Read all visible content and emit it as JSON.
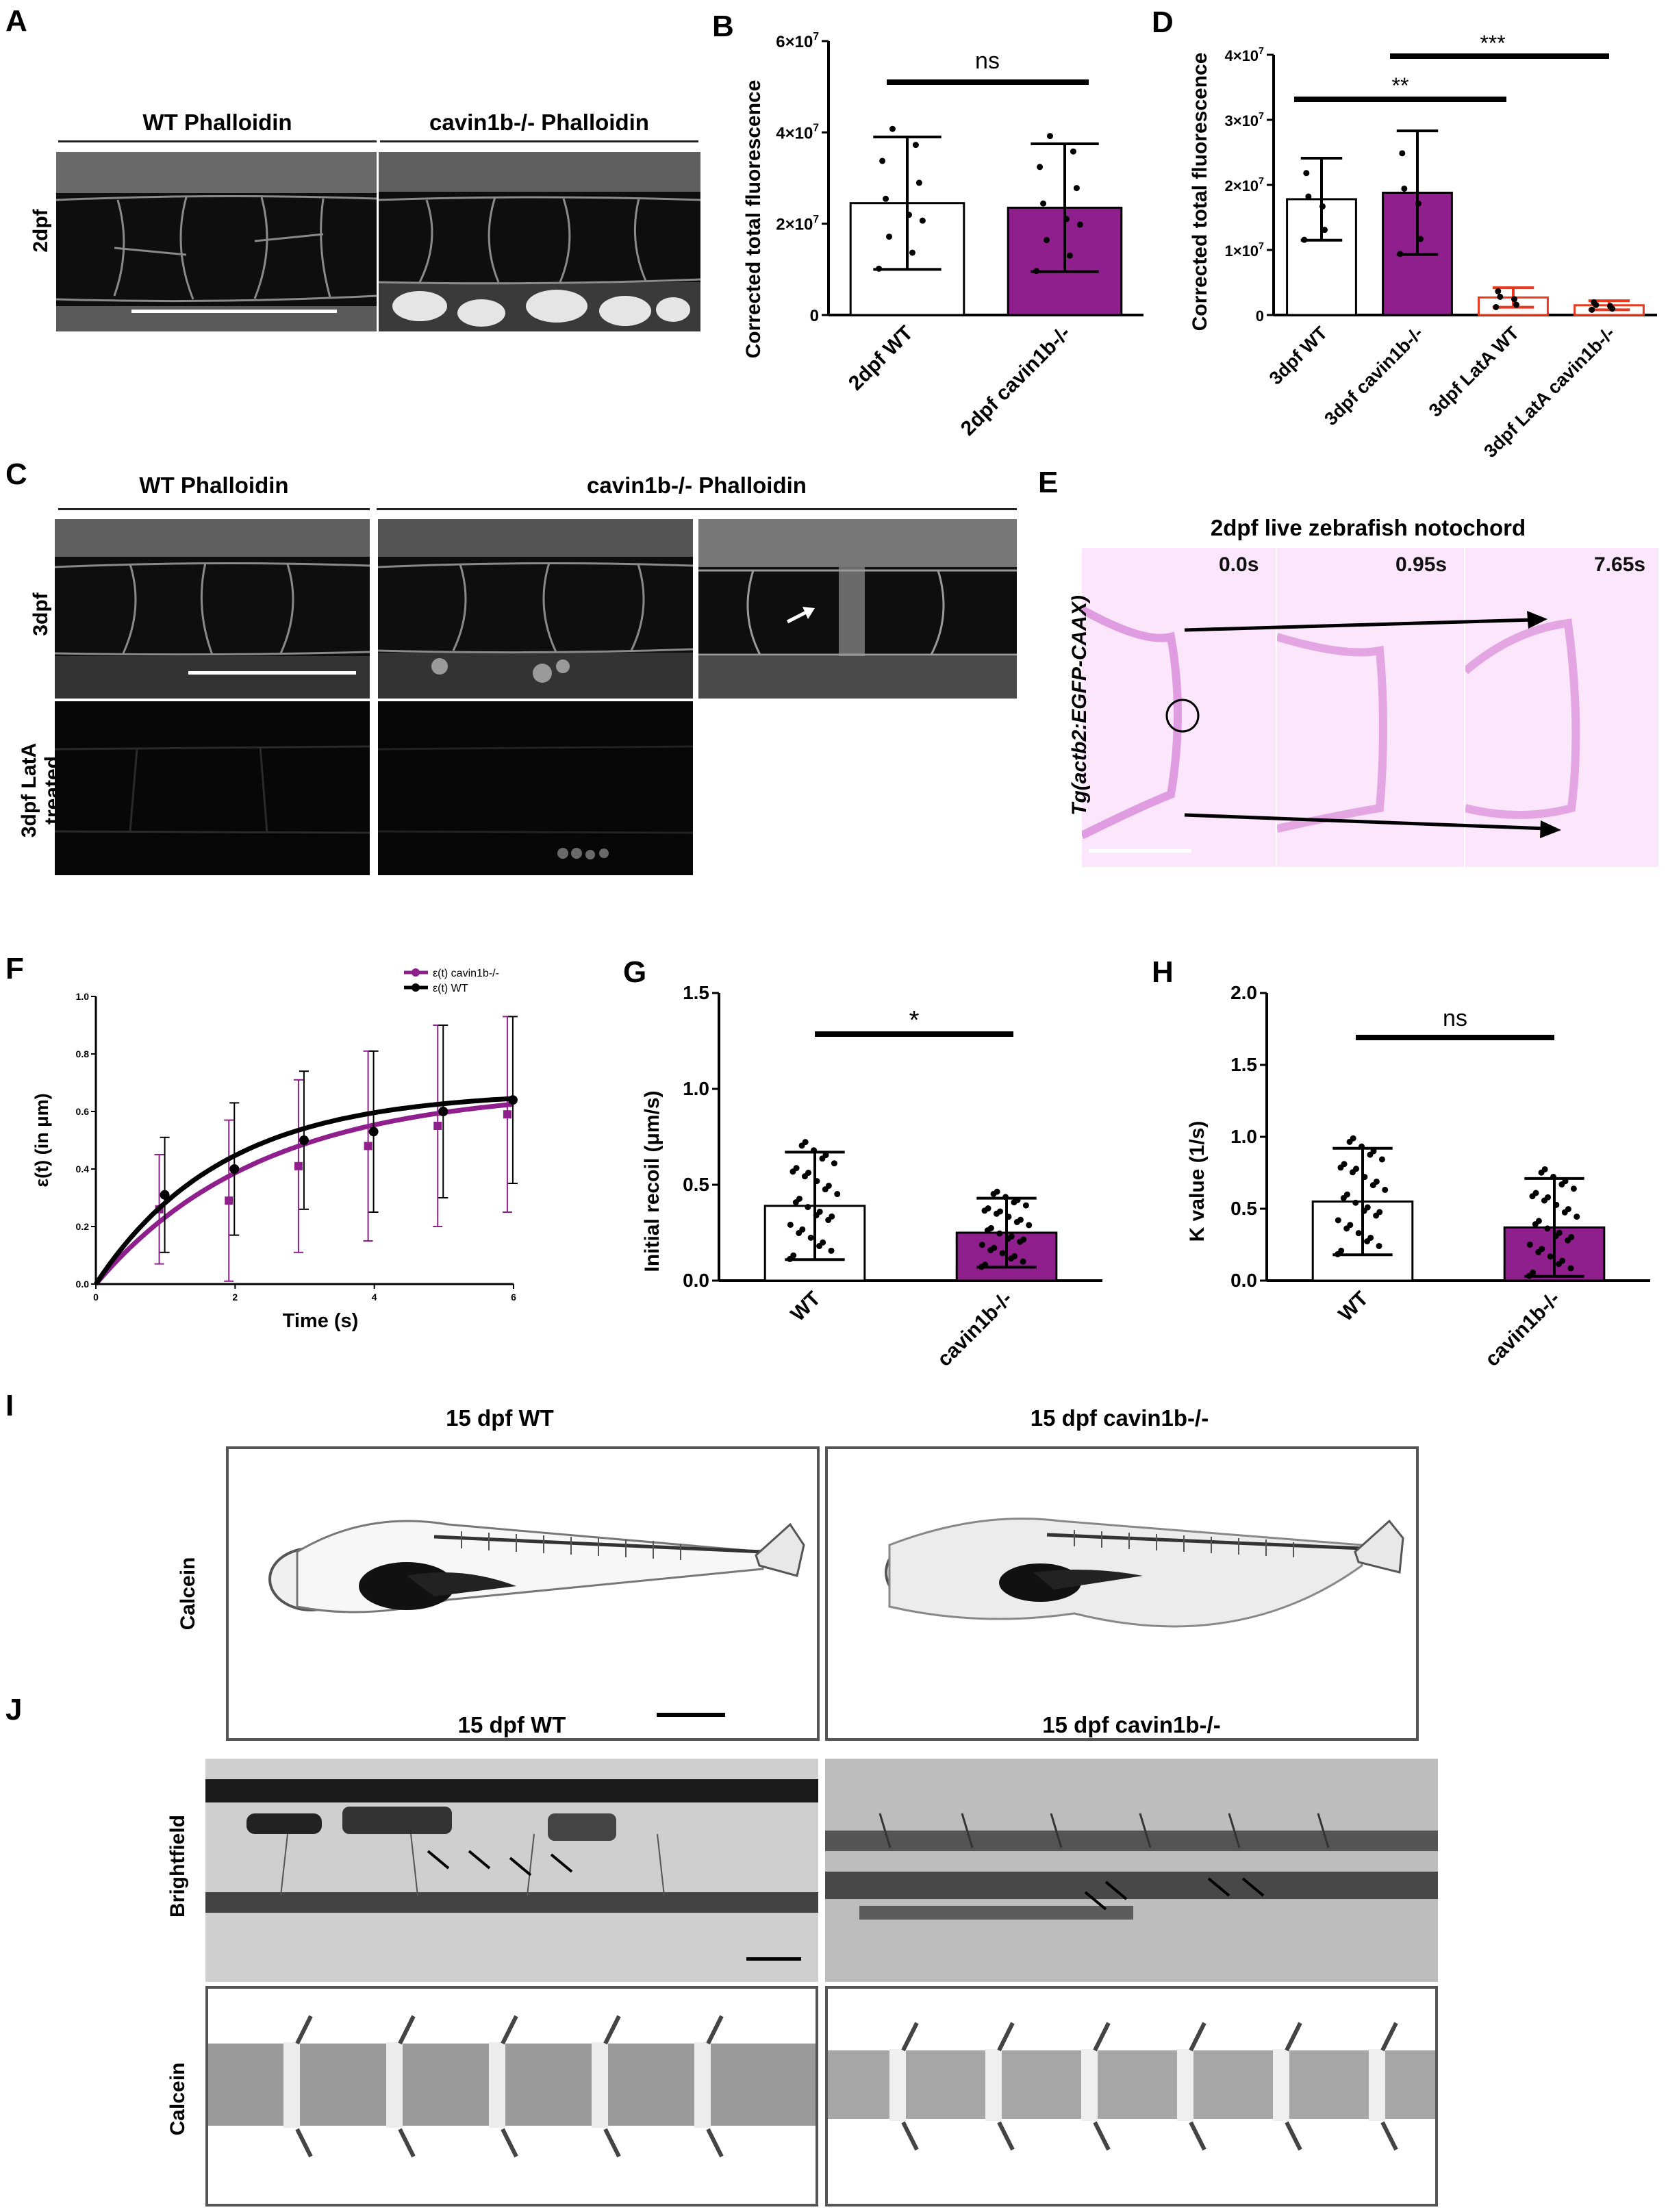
{
  "panels": {
    "A": {
      "label": "A",
      "headers": [
        "WT Phalloidin",
        "cavin1b-/- Phalloidin"
      ],
      "row_label": "2dpf"
    },
    "B": {
      "label": "B",
      "chart_data": {
        "type": "bar",
        "ylabel": "Corrected total fluorescence",
        "categories": [
          "2dpf WT",
          "2dpf cavin1b-/-"
        ],
        "values": [
          24500000,
          23500000
        ],
        "error": [
          14500000,
          14000000
        ],
        "ylim": [
          0,
          60000000
        ],
        "yticks": [
          "0",
          "2×10^7",
          "4×10^7",
          "6×10^7"
        ],
        "bar_colors": [
          "#ffffff",
          "#8e1f8c"
        ],
        "significance": "ns"
      }
    },
    "C": {
      "label": "C",
      "headers": [
        "WT Phalloidin",
        "cavin1b-/- Phalloidin"
      ],
      "row_labels": [
        "3dpf",
        "3dpf LatA treated"
      ]
    },
    "D": {
      "label": "D",
      "chart_data": {
        "type": "bar",
        "ylabel": "Corrected total fluorescence",
        "categories": [
          "3dpf WT",
          "3dpf cavin1b-/-",
          "3dpf LatA WT",
          "3dpf LatA cavin1b-/-"
        ],
        "values": [
          17800000,
          18800000,
          2700000,
          1500000
        ],
        "error": [
          6300000,
          9500000,
          1500000,
          700000
        ],
        "ylim": [
          0,
          40000000
        ],
        "yticks": [
          "0",
          "1×10^7",
          "2×10^7",
          "3×10^7",
          "4×10^7"
        ],
        "bar_colors": [
          "#ffffff",
          "#8e1f8c",
          "#ffffff",
          "#ffffff"
        ],
        "significance": [
          "**",
          "***"
        ]
      }
    },
    "E": {
      "label": "E",
      "title": "2dpf live zebrafish notochord",
      "side_label": "Tg(actb2:EGFP-CAAX)",
      "times": [
        "0.0s",
        "0.95s",
        "7.65s"
      ]
    },
    "F": {
      "label": "F",
      "chart_data": {
        "type": "line",
        "xlabel": "Time (s)",
        "ylabel": "ε(t) (in μm)",
        "xlim": [
          0,
          6
        ],
        "ylim": [
          0,
          1.0
        ],
        "xticks": [
          "0",
          "2",
          "4",
          "6"
        ],
        "yticks": [
          "0.0",
          "0.2",
          "0.4",
          "0.6",
          "0.8",
          "1.0"
        ],
        "series": [
          {
            "name": "ε(t) cavin1b-/-",
            "color": "#8e1f8c",
            "x": [
              1,
              2,
              3,
              4,
              5,
              6
            ],
            "y": [
              0.26,
              0.29,
              0.41,
              0.48,
              0.55,
              0.59
            ],
            "err": [
              0.19,
              0.28,
              0.3,
              0.33,
              0.35,
              0.34
            ]
          },
          {
            "name": "ε(t) WT",
            "color": "#000000",
            "x": [
              1,
              2,
              3,
              4,
              5,
              6
            ],
            "y": [
              0.31,
              0.4,
              0.5,
              0.53,
              0.6,
              0.64
            ],
            "err": [
              0.2,
              0.23,
              0.24,
              0.28,
              0.3,
              0.29
            ]
          }
        ]
      }
    },
    "G": {
      "label": "G",
      "chart_data": {
        "type": "bar",
        "ylabel": "Initial recoil (μm/s)",
        "categories": [
          "WT",
          "cavin1b-/-"
        ],
        "values": [
          0.39,
          0.25
        ],
        "error": [
          0.28,
          0.18
        ],
        "ylim": [
          0,
          1.5
        ],
        "yticks": [
          "0.0",
          "0.5",
          "1.0",
          "1.5"
        ],
        "bar_colors": [
          "#ffffff",
          "#8e1f8c"
        ],
        "significance": "*"
      }
    },
    "H": {
      "label": "H",
      "chart_data": {
        "type": "bar",
        "ylabel": "K value (1/s)",
        "categories": [
          "WT",
          "cavin1b-/-"
        ],
        "values": [
          0.55,
          0.37
        ],
        "error": [
          0.37,
          0.34
        ],
        "ylim": [
          0,
          2.0
        ],
        "yticks": [
          "0.0",
          "0.5",
          "1.0",
          "1.5",
          "2.0"
        ],
        "bar_colors": [
          "#ffffff",
          "#8e1f8c"
        ],
        "significance": "ns"
      }
    },
    "I": {
      "label": "I",
      "headers": [
        "15 dpf WT",
        "15 dpf cavin1b-/-"
      ],
      "row_label": "Calcein"
    },
    "J": {
      "label": "J",
      "headers": [
        "15 dpf WT",
        "15 dpf cavin1b-/-"
      ],
      "row_labels": [
        "Brightfield",
        "Calcein"
      ]
    }
  }
}
